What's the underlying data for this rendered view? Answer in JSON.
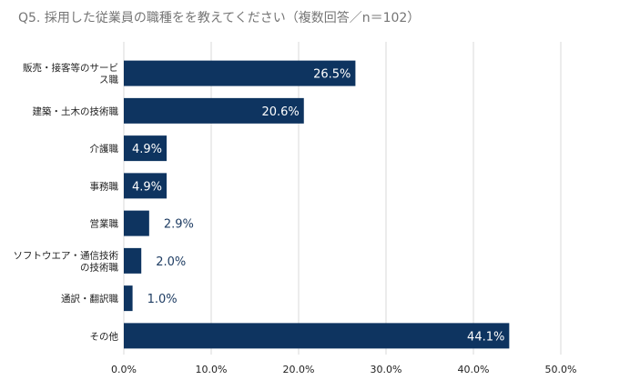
{
  "chart_data": {
    "type": "bar",
    "orientation": "horizontal",
    "title": "Q5.  採用した従業員の職種をを教えてください（複数回答／n＝102）",
    "categories": [
      [
        "販売・接客等のサービ",
        "ス職"
      ],
      [
        "建築・土木の技術職"
      ],
      [
        "介護職"
      ],
      [
        "事務職"
      ],
      [
        "営業職"
      ],
      [
        "ソフトウエア・通信技術",
        "の技術職"
      ],
      [
        "通訳・翻訳職"
      ],
      [
        "その他"
      ]
    ],
    "values": [
      26.5,
      20.6,
      4.9,
      4.9,
      2.9,
      2.0,
      1.0,
      44.1
    ],
    "value_labels": [
      "26.5%",
      "20.6%",
      "4.9%",
      "4.9%",
      "2.9%",
      "2.0%",
      "1.0%",
      "44.1%"
    ],
    "xlim": [
      0,
      50
    ],
    "x_ticks": [
      0,
      10,
      20,
      30,
      40,
      50
    ],
    "x_tick_labels": [
      "0.0%",
      "10.0%",
      "20.0%",
      "30.0%",
      "40.0%",
      "50.0%"
    ],
    "xlabel": "",
    "ylabel": "",
    "grid": "vertical",
    "legend": "none",
    "colors": {
      "bar": "#0e3460",
      "label_inside": "#ffffff",
      "label_outside": "#1f3d63",
      "grid": "#d9d9d9",
      "title": "#757575"
    }
  }
}
